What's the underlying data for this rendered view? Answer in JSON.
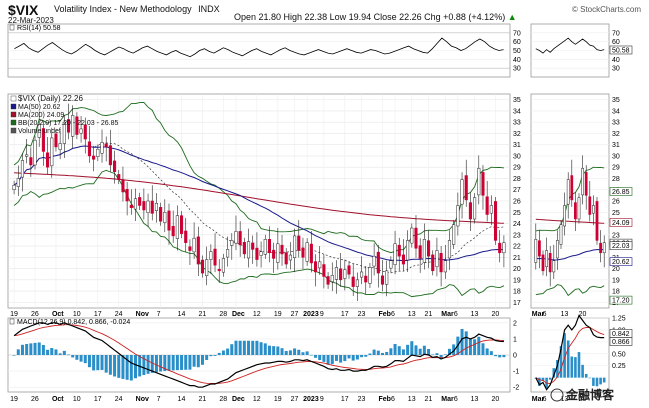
{
  "header": {
    "symbol": "$VIX",
    "name": "Volatility Index - New Methodology",
    "exchange": "INDX",
    "date": "22-Mar-2023",
    "ohlc": "Open 21.80  High 22.38  Low 19.94  Close 22.26  Chg +0.88 (+4.12%)",
    "chg_arrow": "▲",
    "credit": "© StockCharts.com"
  },
  "colors": {
    "price_up": "#ffffff",
    "price_down": "#cc0033",
    "ma50": "#1a1a8c",
    "ma200": "#a0102a",
    "bb": "#1c6b1c",
    "bb_mid": "#333333",
    "rsi": "#000000",
    "macd": "#000000",
    "signal": "#cc2222",
    "hist": "#2a8fc9"
  },
  "chart_data": [
    {
      "type": "line",
      "id": "rsi",
      "legend": "RSI(14) 50.58",
      "ylim": [
        20,
        80
      ],
      "yticks": [
        30,
        40,
        50,
        60,
        70
      ],
      "hlines": [
        30,
        70
      ],
      "values": [
        52,
        55,
        58,
        53,
        50,
        48,
        52,
        56,
        59,
        55,
        51,
        48,
        46,
        49,
        53,
        57,
        54,
        50,
        47,
        45,
        48,
        51,
        54,
        52,
        49,
        47,
        50,
        53,
        55,
        52,
        49,
        47,
        45,
        48,
        50,
        47,
        45,
        43,
        46,
        50,
        52,
        49,
        47,
        50,
        53,
        51,
        48,
        46,
        44,
        47,
        50,
        52,
        49,
        47,
        45,
        48,
        51,
        53,
        50,
        48,
        46,
        45,
        47,
        49,
        51,
        49,
        47,
        46,
        48,
        50,
        52,
        50,
        48,
        47,
        49,
        51,
        50,
        48,
        46,
        47,
        49,
        51,
        53,
        55,
        52,
        50,
        48,
        47,
        52,
        58,
        64,
        60,
        55,
        53,
        50,
        52,
        56,
        60,
        63,
        60,
        55,
        52,
        50,
        51
      ],
      "last_label": "50.58"
    },
    {
      "type": "candlestick",
      "id": "price",
      "legend": [
        "$VIX (Daily) 22.26",
        "MA(50) 20.62",
        "MA(200) 24.09",
        "BB(20,2.0) 17.20 - 22.03 - 26.85",
        "Volume undef"
      ],
      "ylim": [
        16.5,
        35.5
      ],
      "yticks": [
        17,
        18,
        19,
        20,
        21,
        22,
        23,
        24,
        25,
        26,
        27,
        28,
        29,
        30,
        31,
        32,
        33,
        34,
        35
      ],
      "x_months": [
        {
          "label": "19",
          "i": 0
        },
        {
          "label": "26",
          "i": 5
        },
        {
          "label": "Oct",
          "i": 10
        },
        {
          "label": "10",
          "i": 15
        },
        {
          "label": "17",
          "i": 20
        },
        {
          "label": "24",
          "i": 25
        },
        {
          "label": "Nov",
          "i": 30
        },
        {
          "label": "7",
          "i": 35
        },
        {
          "label": "14",
          "i": 40
        },
        {
          "label": "21",
          "i": 45
        },
        {
          "label": "28",
          "i": 50
        },
        {
          "label": "Dec",
          "i": 53
        },
        {
          "label": "12",
          "i": 58
        },
        {
          "label": "19",
          "i": 63
        },
        {
          "label": "27",
          "i": 67
        },
        {
          "label": "2023",
          "i": 70
        },
        {
          "label": "9",
          "i": 74
        },
        {
          "label": "17",
          "i": 79
        },
        {
          "label": "23",
          "i": 83
        },
        {
          "label": "Feb",
          "i": 88
        },
        {
          "label": "6",
          "i": 91
        },
        {
          "label": "13",
          "i": 95
        },
        {
          "label": "21",
          "i": 99
        },
        {
          "label": "Mar",
          "i": 103
        },
        {
          "label": "6",
          "i": 106
        },
        {
          "label": "13",
          "i": 110
        },
        {
          "label": "20",
          "i": 115
        }
      ],
      "closes": [
        27.4,
        28.0,
        29.6,
        30.1,
        29.2,
        31.4,
        32.8,
        30.4,
        29.0,
        31.6,
        30.8,
        31.1,
        33.0,
        32.1,
        33.6,
        31.9,
        32.4,
        31.5,
        30.0,
        29.7,
        30.6,
        31.2,
        30.8,
        29.2,
        28.6,
        27.9,
        26.8,
        26.0,
        25.4,
        26.2,
        25.6,
        25.2,
        26.0,
        24.9,
        25.8,
        24.2,
        25.0,
        23.4,
        22.9,
        24.7,
        23.1,
        22.3,
        21.6,
        22.7,
        20.4,
        19.6,
        20.8,
        21.5,
        20.3,
        19.8,
        20.9,
        21.7,
        22.5,
        23.3,
        22.1,
        21.3,
        22.4,
        21.7,
        20.8,
        21.5,
        22.6,
        21.4,
        20.9,
        22.2,
        21.3,
        20.4,
        21.2,
        22.9,
        21.6,
        21.0,
        22.3,
        20.5,
        19.7,
        20.6,
        19.3,
        18.6,
        19.4,
        20.1,
        19.0,
        19.9,
        19.5,
        18.4,
        19.0,
        19.7,
        18.8,
        20.1,
        21.1,
        19.6,
        18.6,
        19.8,
        20.7,
        22.2,
        21.1,
        20.4,
        22.5,
        23.6,
        21.8,
        20.9,
        22.6,
        21.1,
        19.8,
        21.6,
        19.7,
        20.7,
        22.5,
        23.9,
        25.6,
        27.9,
        26.1,
        24.4,
        26.3,
        28.9,
        26.5,
        24.8,
        25.6,
        22.5,
        21.4,
        22.3
      ],
      "ma50": [],
      "ma200": [],
      "bb": {},
      "last_labels": [
        "22.26",
        "22.03",
        "24.09",
        "26.85",
        "20.62",
        "17.20"
      ]
    },
    {
      "type": "line",
      "id": "macd",
      "legend": "MACD(12,26,9) 0.842, 0.866, -0.024",
      "ylim": [
        -2.3,
        2.3
      ],
      "yticks": [
        -2,
        -1,
        0,
        1,
        2
      ],
      "macd": [
        1.2,
        1.4,
        1.6,
        1.7,
        1.8,
        1.9,
        2.0,
        2.0,
        1.9,
        2.0,
        2.0,
        1.9,
        2.0,
        1.9,
        1.8,
        1.7,
        1.6,
        1.5,
        1.3,
        1.1,
        1.0,
        0.9,
        0.7,
        0.5,
        0.3,
        0.1,
        -0.1,
        -0.3,
        -0.5,
        -0.6,
        -0.7,
        -0.8,
        -0.9,
        -1.0,
        -1.1,
        -1.2,
        -1.3,
        -1.4,
        -1.5,
        -1.6,
        -1.7,
        -1.8,
        -1.9,
        -1.9,
        -2.0,
        -2.0,
        -1.9,
        -1.8,
        -1.8,
        -1.7,
        -1.6,
        -1.5,
        -1.3,
        -1.1,
        -1.0,
        -0.9,
        -0.8,
        -0.7,
        -0.6,
        -0.55,
        -0.5,
        -0.5,
        -0.45,
        -0.4,
        -0.4,
        -0.45,
        -0.4,
        -0.3,
        -0.3,
        -0.35,
        -0.3,
        -0.4,
        -0.5,
        -0.6,
        -0.7,
        -0.85,
        -0.9,
        -0.85,
        -0.95,
        -0.95,
        -0.9,
        -1.0,
        -1.0,
        -0.95,
        -0.95,
        -0.85,
        -0.7,
        -0.7,
        -0.75,
        -0.7,
        -0.55,
        -0.35,
        -0.35,
        -0.4,
        -0.2,
        0.0,
        -0.05,
        -0.1,
        0.05,
        0.0,
        -0.15,
        -0.1,
        -0.25,
        -0.15,
        0.05,
        0.25,
        0.6,
        1.0,
        1.1,
        1.0,
        1.1,
        1.3,
        1.2,
        1.1,
        1.05,
        0.9,
        0.85,
        0.84
      ],
      "signal": [],
      "last_labels": [
        "0.866",
        "0.842"
      ]
    },
    {
      "type": "candlestick",
      "id": "mini_price",
      "x_months": [
        {
          "label": "Mar",
          "i": 0
        },
        {
          "label": "6",
          "i": 3
        },
        {
          "label": "13",
          "i": 8
        },
        {
          "label": "20",
          "i": 13
        }
      ],
      "closes": [
        22.6,
        21.1,
        19.8,
        21.6,
        19.7,
        20.7,
        22.5,
        23.9,
        25.6,
        27.9,
        26.1,
        24.4,
        26.3,
        28.9,
        26.5,
        24.8,
        25.6,
        22.5,
        21.4,
        22.3
      ]
    },
    {
      "type": "line",
      "id": "mini_rsi",
      "values": [
        52,
        50,
        47,
        51,
        48,
        52,
        55,
        58,
        61,
        64,
        60,
        57,
        60,
        63,
        60,
        56,
        55,
        51,
        50,
        51
      ]
    },
    {
      "type": "line",
      "id": "mini_macd",
      "values": [
        0.0,
        -0.15,
        -0.1,
        -0.25,
        -0.15,
        0.05,
        0.25,
        0.6,
        1.0,
        1.1,
        1.0,
        1.1,
        1.3,
        1.2,
        1.1,
        1.05,
        0.9,
        0.85,
        0.84,
        0.84
      ],
      "yticks": [
        0.25,
        0.5,
        0.75,
        1.0,
        1.25
      ],
      "last_labels": [
        "0.842",
        "0.866"
      ]
    }
  ],
  "watermark": "金融博客"
}
